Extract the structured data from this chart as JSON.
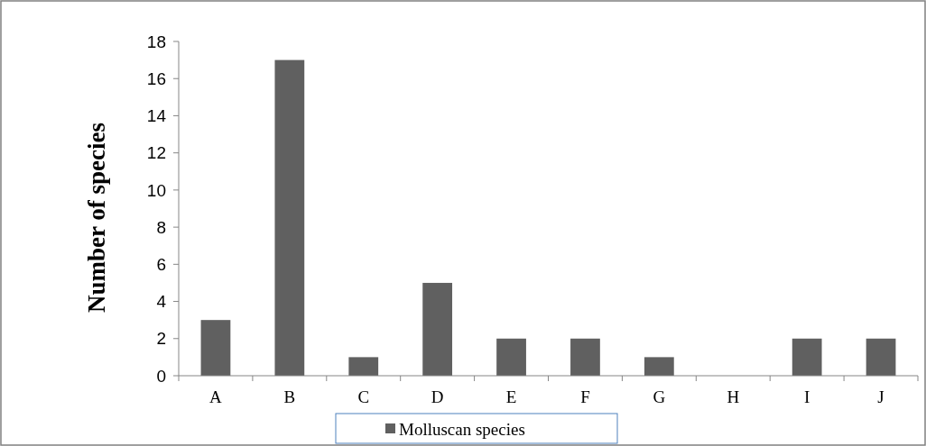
{
  "chart_data": {
    "type": "bar",
    "ylabel": "Number of  species",
    "categories": [
      "A",
      "B",
      "C",
      "D",
      "E",
      "F",
      "G",
      "H",
      "I",
      "J"
    ],
    "series": [
      {
        "name": "Molluscan species",
        "color": "#606060",
        "values": [
          3,
          17,
          1,
          5,
          2,
          2,
          1,
          0,
          2,
          2
        ]
      }
    ],
    "ylim": [
      0,
      18
    ],
    "yticks": [
      0,
      2,
      4,
      6,
      8,
      10,
      12,
      14,
      16,
      18
    ],
    "grid": false,
    "legend": "bottom"
  }
}
